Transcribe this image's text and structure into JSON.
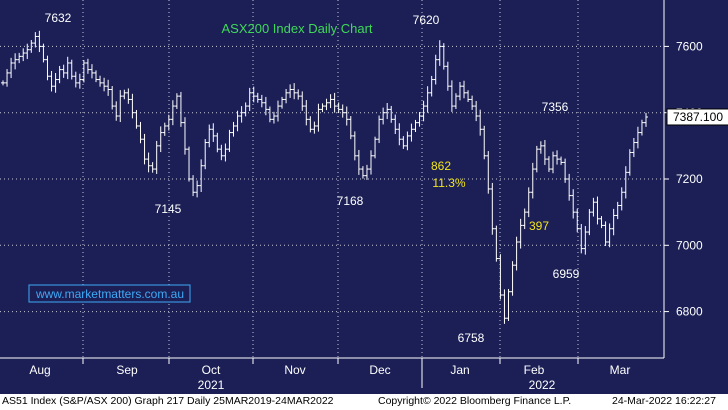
{
  "chart_data": {
    "type": "ohlc",
    "title": "ASX200 Index Daily Chart",
    "y_axis": {
      "position": "right",
      "ticks": [
        6800,
        7000,
        7200,
        7400,
        7600
      ],
      "range": [
        6660,
        7740
      ]
    },
    "x_axis": {
      "months": [
        "Aug",
        "Sep",
        "Oct",
        "Nov",
        "Dec",
        "Jan",
        "Feb",
        "Mar"
      ],
      "years": [
        "2021",
        "2022"
      ]
    },
    "last_price": "7387.100",
    "series": [
      {
        "name": "",
        "values": [
          7490,
          7520,
          7550,
          7560,
          7570,
          7580,
          7590,
          7610,
          7630,
          7600,
          7560,
          7510,
          7480,
          7500,
          7530,
          7520,
          7550,
          7510,
          7490,
          7500,
          7550,
          7530,
          7520,
          7500,
          7490,
          7480,
          7470,
          7420,
          7390,
          7450,
          7460,
          7440,
          7400,
          7360,
          7320,
          7260,
          7240,
          7230,
          7300,
          7340,
          7360,
          7380,
          7420,
          7450,
          7370,
          7290,
          7200,
          7160,
          7180,
          7240,
          7310,
          7350,
          7330,
          7290,
          7270,
          7290,
          7340,
          7360,
          7390,
          7400,
          7420,
          7460,
          7450,
          7440,
          7430,
          7410,
          7380,
          7390,
          7420,
          7440,
          7460,
          7470,
          7460,
          7450,
          7420,
          7380,
          7350,
          7360,
          7410,
          7420,
          7430,
          7440,
          7420,
          7410,
          7400,
          7380,
          7330,
          7270,
          7230,
          7210,
          7230,
          7270,
          7320,
          7380,
          7400,
          7410,
          7380,
          7350,
          7320,
          7300,
          7330,
          7350,
          7370,
          7390,
          7420,
          7460,
          7500,
          7560,
          7600,
          7540,
          7480,
          7420,
          7450,
          7480,
          7460,
          7440,
          7420,
          7390,
          7350,
          7270,
          7170,
          7050,
          6960,
          6850,
          6780,
          6860,
          6940,
          7010,
          7060,
          7100,
          7160,
          7230,
          7290,
          7300,
          7260,
          7230,
          7270,
          7260,
          7250,
          7200,
          7150,
          7100,
          7050,
          6990,
          7040,
          7100,
          7130,
          7080,
          7060,
          7010,
          7050,
          7090,
          7120,
          7160,
          7220,
          7280,
          7310,
          7340,
          7370,
          7387
        ]
      }
    ],
    "annotations": [
      {
        "text": "7632",
        "value": 7632,
        "kind": "high"
      },
      {
        "text": "7145",
        "value": 7145,
        "kind": "low"
      },
      {
        "text": "7168",
        "value": 7168,
        "kind": "low"
      },
      {
        "text": "7620",
        "value": 7620,
        "kind": "high"
      },
      {
        "text": "6758",
        "value": 6758,
        "kind": "low"
      },
      {
        "text": "7356",
        "value": 7356,
        "kind": "high"
      },
      {
        "text": "6959",
        "value": 6959,
        "kind": "low"
      },
      {
        "text": "862",
        "kind": "move"
      },
      {
        "text": "11.3%",
        "kind": "move"
      },
      {
        "text": "397",
        "kind": "move"
      }
    ],
    "watermark": "www.marketmatters.com.au",
    "grid": true
  },
  "footer": {
    "left": "AS51 Index (S&P/ASX 200) Graph 217  Daily 25MAR2019-24MAR2022",
    "center": "Copyright© 2022 Bloomberg Finance L.P.",
    "right": "24-Mar-2022 16:22:27"
  },
  "colors": {
    "background": "#1b1f55",
    "bars": "#ffffff",
    "title": "#3fd95a",
    "move_labels": "#f2e617",
    "watermark": "#3fa9f5",
    "grid": "#ffffff"
  }
}
